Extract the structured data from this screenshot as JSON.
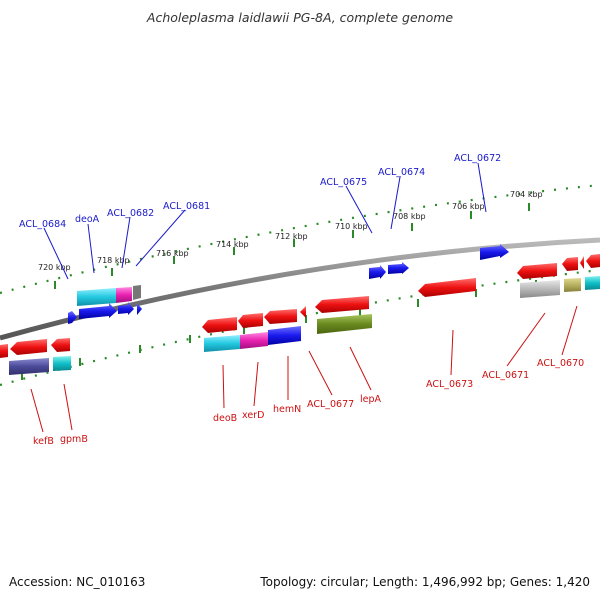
{
  "title": "Acholeplasma laidlawii PG-8A, complete genome",
  "footer": {
    "accession": "Accession: NC_010163",
    "topology": "Topology: circular; Length: 1,496,992 bp; Genes: 1,420"
  },
  "scale_ticks": [
    "720 kbp",
    "718 kbp",
    "716 kbp",
    "714 kbp",
    "712 kbp",
    "710 kbp",
    "708 kbp",
    "706 kbp",
    "704 kbp"
  ],
  "top_labels": [
    "ACL_0684",
    "deoA",
    "ACL_0682",
    "ACL_0681",
    "ACL_0675",
    "ACL_0674",
    "ACL_0672"
  ],
  "bottom_labels": [
    "kefB",
    "gpmB",
    "deoB",
    "xerD",
    "hemN",
    "ACL_0677",
    "lepA",
    "ACL_0673",
    "ACL_0671",
    "ACL_0670"
  ],
  "colors": {
    "forward_gene": "#1a1aee",
    "reverse_gene": "#ee1111",
    "backbone": "#7a7a7a",
    "tick": "#2a8a2a",
    "cog_cyan": "#22c8e0",
    "cog_magenta": "#e820b0",
    "cog_blue": "#1a1aee",
    "cog_olive": "#6a8a20",
    "cog_gray": "#b8b8b8",
    "cog_khaki": "#b8b060",
    "cog_navy": "#4a4a9a",
    "cog_teal": "#10c0c8"
  }
}
